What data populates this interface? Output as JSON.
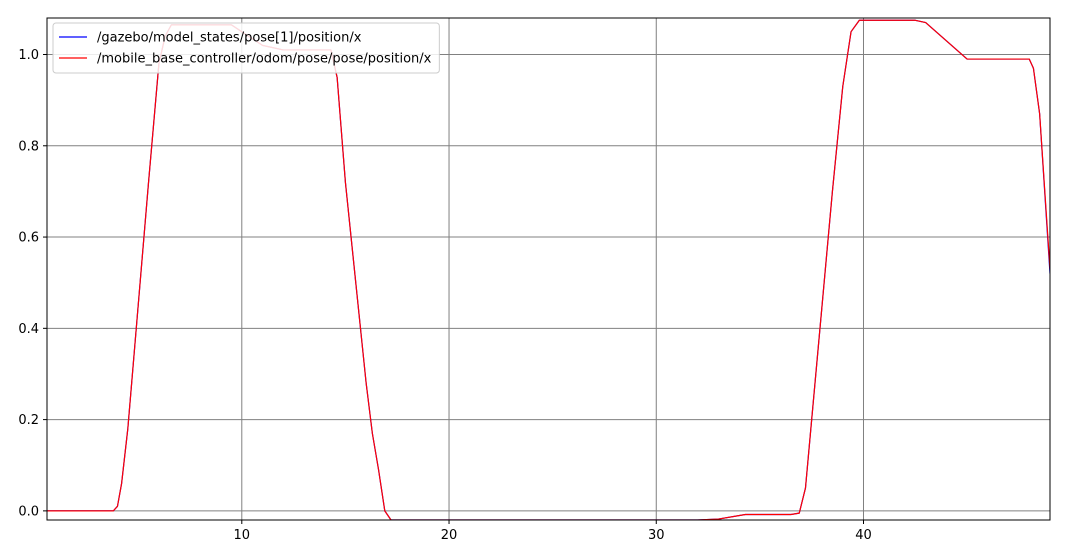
{
  "chart_data": {
    "type": "line",
    "title": "",
    "xlabel": "",
    "ylabel": "",
    "xlim": [
      0.6,
      49.0
    ],
    "ylim": [
      -0.02,
      1.08
    ],
    "grid": true,
    "legend_position": "top-left",
    "x_ticks": [
      10,
      20,
      30,
      40
    ],
    "y_ticks": [
      0.0,
      0.2,
      0.4,
      0.6,
      0.8,
      1.0
    ],
    "x_tick_labels": [
      "10",
      "20",
      "30",
      "40"
    ],
    "y_tick_labels": [
      "0.0",
      "0.2",
      "0.4",
      "0.6",
      "0.8",
      "1.0"
    ],
    "series": [
      {
        "name": "/gazebo/model_states/pose[1]/position/x",
        "color": "#0000ff",
        "x": [
          0.6,
          3.8,
          4.0,
          4.2,
          4.5,
          5.0,
          5.5,
          6.0,
          6.3,
          6.6,
          7.0,
          9.5,
          10.0,
          11.0,
          12.0,
          14.3,
          14.6,
          15.0,
          15.5,
          16.0,
          16.3,
          16.6,
          16.9,
          17.2,
          20.0,
          25.0,
          30.0,
          32.0,
          33.0,
          34.3,
          36.5,
          36.9,
          37.2,
          37.5,
          38.0,
          38.5,
          39.0,
          39.4,
          39.8,
          41.0,
          42.5,
          43.0,
          45.0,
          46.0,
          47.0,
          48.0,
          48.2,
          48.5,
          49.0
        ],
        "values": [
          0.0,
          0.0,
          0.01,
          0.06,
          0.18,
          0.45,
          0.72,
          0.98,
          1.04,
          1.065,
          1.065,
          1.065,
          1.05,
          1.02,
          1.01,
          1.01,
          0.95,
          0.72,
          0.5,
          0.28,
          0.17,
          0.09,
          0.0,
          -0.02,
          -0.02,
          -0.02,
          -0.02,
          -0.02,
          -0.018,
          -0.008,
          -0.008,
          -0.005,
          0.05,
          0.2,
          0.45,
          0.7,
          0.93,
          1.05,
          1.075,
          1.075,
          1.075,
          1.07,
          0.99,
          0.99,
          0.99,
          0.99,
          0.97,
          0.87,
          0.52
        ]
      },
      {
        "name": "/mobile_base_controller/odom/pose/pose/position/x",
        "color": "#ff0000",
        "x": [
          0.6,
          3.8,
          4.0,
          4.2,
          4.5,
          5.0,
          5.5,
          6.0,
          6.3,
          6.6,
          7.0,
          9.5,
          10.0,
          11.0,
          12.0,
          14.3,
          14.6,
          15.0,
          15.5,
          16.0,
          16.3,
          16.6,
          16.9,
          17.2,
          20.0,
          25.0,
          30.0,
          32.0,
          33.0,
          34.3,
          36.5,
          36.9,
          37.2,
          37.5,
          38.0,
          38.5,
          39.0,
          39.4,
          39.8,
          41.0,
          42.5,
          43.0,
          45.0,
          46.0,
          47.0,
          48.0,
          48.2,
          48.5,
          49.0
        ],
        "values": [
          0.0,
          0.0,
          0.01,
          0.06,
          0.18,
          0.45,
          0.72,
          0.98,
          1.04,
          1.065,
          1.065,
          1.065,
          1.05,
          1.02,
          1.01,
          1.01,
          0.95,
          0.72,
          0.5,
          0.28,
          0.17,
          0.09,
          0.0,
          -0.02,
          -0.02,
          -0.02,
          -0.02,
          -0.02,
          -0.018,
          -0.008,
          -0.008,
          -0.005,
          0.05,
          0.2,
          0.45,
          0.7,
          0.93,
          1.05,
          1.075,
          1.075,
          1.075,
          1.07,
          0.99,
          0.99,
          0.99,
          0.99,
          0.97,
          0.87,
          0.53
        ]
      }
    ]
  }
}
